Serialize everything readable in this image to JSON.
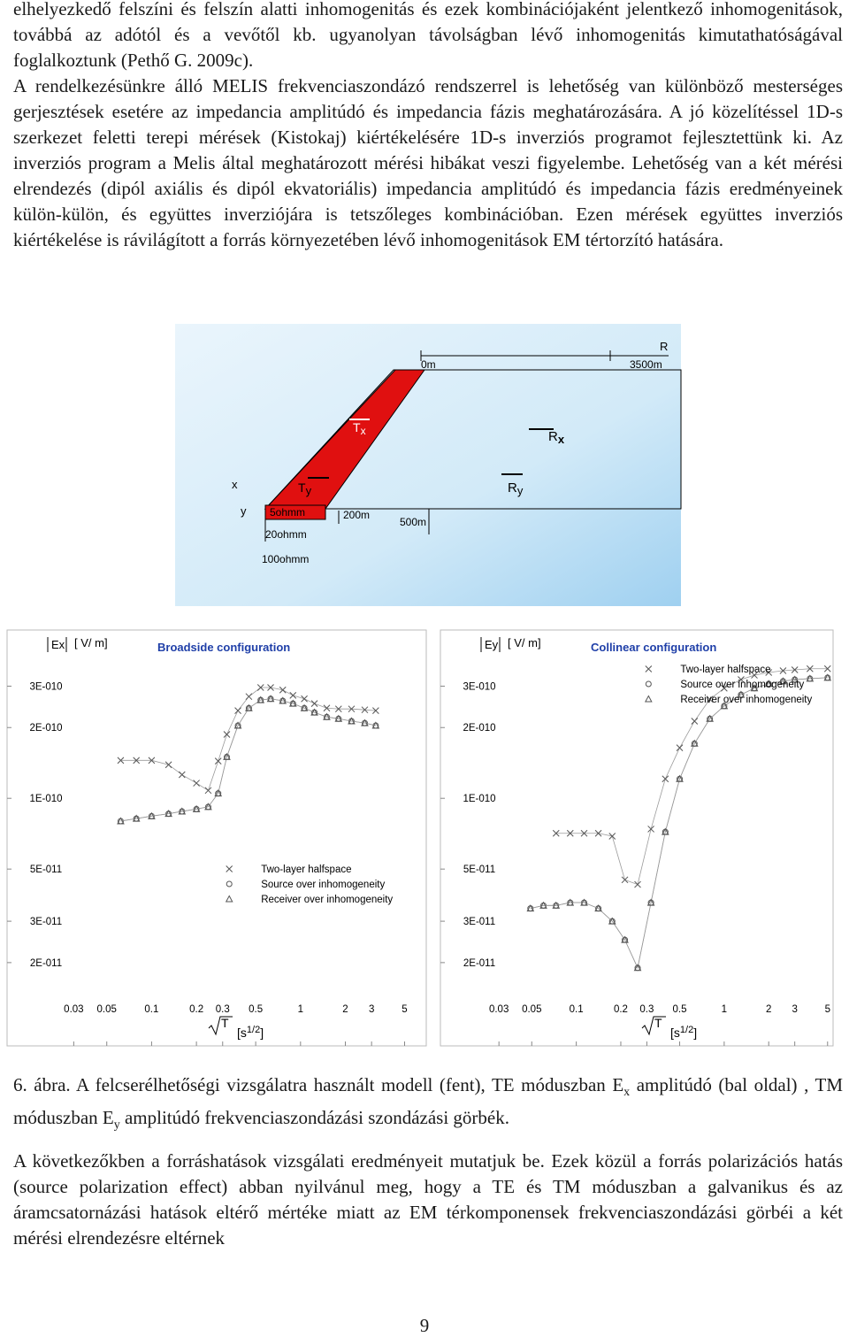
{
  "paragraphs": [
    "elhelyezkedő felszíni és felszín alatti inhomogenitás és ezek kombinációjaként jelentkező inhomogenitások, továbbá az adótól és a vevőtől kb. ugyanolyan távolságban lévő inhomogenitás kimutathatóságával foglalkoztunk (Pethő G. 2009c).",
    "A rendelkezésünkre álló MELIS frekvenciaszondázó rendszerrel is lehetőség van különböző mesterséges gerjesztések esetére az impedancia amplitúdó és impedancia fázis meghatározására. A jó közelítéssel 1D-s szerkezet feletti terepi mérések (Kistokaj) kiértékelésére 1D-s inverziós programot fejlesztettünk ki. Az inverziós program a Melis által meghatározott mérési hibákat veszi figyelembe. Lehetőség van a két mérési elrendezés (dipól axiális és dipól ekvatoriális) impedancia amplitúdó és impedancia fázis eredményeinek külön-külön, és együttes inverziójára is tetszőleges kombinációban. Ezen mérések együttes inverziós kiértékelése is rávilágított a forrás környezetében lévő inhomogenitások EM tértorzító hatására."
  ],
  "diagram": {
    "scale_start": "0m",
    "scale_end": "3500m",
    "scale_label": "R",
    "tx": {
      "main": "T",
      "sub": "x"
    },
    "rx": {
      "main": "R",
      "sub": "x"
    },
    "ty": {
      "main": "T",
      "sub": "y"
    },
    "ry": {
      "main": "R",
      "sub": "y"
    },
    "axis_x": "x",
    "axis_y": "y",
    "res_top": "5ohmm",
    "res_mid": "20ohmm",
    "res_bottom": "100ohmm",
    "width_strip": "200m",
    "depth": "500m"
  },
  "chart_data": [
    {
      "type": "line",
      "title": "Broadside configuration",
      "y_label": "Ex",
      "y_unit": "[ V/ m]",
      "x_label": "T",
      "x_unit": [
        "[s",
        "1/2",
        "]"
      ],
      "xscale": "log",
      "yscale": "log",
      "legend": "lower right",
      "xlim": [
        0.011,
        6.8
      ],
      "ylim": [
        9e-12,
        5.2e-10
      ],
      "xticks": [
        0.03,
        0.05,
        0.1,
        0.2,
        0.3,
        0.5,
        1,
        2,
        3,
        5
      ],
      "yticks": [
        {
          "value": 2e-11,
          "label": "2E-011"
        },
        {
          "value": 3e-11,
          "label": "3E-011"
        },
        {
          "value": 5e-11,
          "label": "5E-011"
        },
        {
          "value": 1e-10,
          "label": "1E-010"
        },
        {
          "value": 2e-10,
          "label": "2E-010"
        },
        {
          "value": 3e-10,
          "label": "3E-010"
        }
      ],
      "x": [
        0.062,
        0.079,
        0.1,
        0.13,
        0.16,
        0.2,
        0.24,
        0.28,
        0.32,
        0.38,
        0.45,
        0.54,
        0.63,
        0.76,
        0.89,
        1.06,
        1.24,
        1.5,
        1.8,
        2.2,
        2.7,
        3.2
      ],
      "series": [
        {
          "name": "Two-layer halfspace",
          "marker": "x",
          "color": "#555555",
          "values": [
            1.45e-10,
            1.45e-10,
            1.45e-10,
            1.39e-10,
            1.26e-10,
            1.16e-10,
            1.08e-10,
            1.44e-10,
            1.87e-10,
            2.36e-10,
            2.71e-10,
            2.96e-10,
            2.96e-10,
            2.89e-10,
            2.74e-10,
            2.65e-10,
            2.53e-10,
            2.42e-10,
            2.4e-10,
            2.4e-10,
            2.38e-10,
            2.36e-10
          ]
        },
        {
          "name": "Source over inhomogeneity",
          "marker": "circle",
          "color": "#555555",
          "values": [
            8e-11,
            8.2e-11,
            8.4e-11,
            8.6e-11,
            8.8e-11,
            9e-11,
            9.2e-11,
            1.05e-10,
            1.5e-10,
            2.04e-10,
            2.42e-10,
            2.62e-10,
            2.65e-10,
            2.6e-10,
            2.53e-10,
            2.42e-10,
            2.32e-10,
            2.22e-10,
            2.18e-10,
            2.13e-10,
            2.09e-10,
            2.04e-10
          ]
        },
        {
          "name": "Receiver over inhomogeneity",
          "marker": "triangle",
          "color": "#555555",
          "values": [
            8e-11,
            8.2e-11,
            8.4e-11,
            8.6e-11,
            8.8e-11,
            9e-11,
            9.2e-11,
            1.05e-10,
            1.5e-10,
            2.04e-10,
            2.42e-10,
            2.62e-10,
            2.65e-10,
            2.6e-10,
            2.53e-10,
            2.42e-10,
            2.32e-10,
            2.22e-10,
            2.18e-10,
            2.13e-10,
            2.09e-10,
            2.04e-10
          ]
        }
      ]
    },
    {
      "type": "line",
      "title": "Collinear configuration",
      "y_label": "Ey",
      "y_unit": "[ V/ m]",
      "x_label": "T",
      "x_unit": [
        "[s",
        "1/2",
        "]"
      ],
      "xscale": "log",
      "yscale": "log",
      "legend": "upper right",
      "xlim": [
        0.0124,
        5.3
      ],
      "ylim": [
        9e-12,
        5.2e-10
      ],
      "xticks": [
        0.03,
        0.05,
        0.1,
        0.2,
        0.3,
        0.5,
        1,
        2,
        3,
        5
      ],
      "yticks": [
        {
          "value": 2e-11,
          "label": "2E-011"
        },
        {
          "value": 3e-11,
          "label": "3E-011"
        },
        {
          "value": 5e-11,
          "label": "5E-011"
        },
        {
          "value": 1e-10,
          "label": "1E-010"
        },
        {
          "value": 2e-10,
          "label": "2E-010"
        },
        {
          "value": 3e-10,
          "label": "3E-010"
        }
      ],
      "x": [
        0.049,
        0.06,
        0.073,
        0.091,
        0.113,
        0.141,
        0.175,
        0.213,
        0.26,
        0.32,
        0.4,
        0.5,
        0.63,
        0.8,
        1.0,
        1.3,
        1.6,
        2.0,
        2.5,
        3.0,
        3.8,
        5.0
      ],
      "series": [
        {
          "name": "Two-layer halfspace",
          "marker": "x",
          "color": "#555555",
          "values": [
            null,
            null,
            7.1e-11,
            7.1e-11,
            7.1e-11,
            7.1e-11,
            6.9e-11,
            4.5e-11,
            4.3e-11,
            7.4e-11,
            1.21e-10,
            1.64e-10,
            2.13e-10,
            2.64e-10,
            2.94e-10,
            3.2e-10,
            3.34e-10,
            3.43e-10,
            3.49e-10,
            3.52e-10,
            3.56e-10,
            3.56e-10
          ]
        },
        {
          "name": "Source over inhomogeneity",
          "marker": "circle",
          "color": "#555555",
          "values": [
            3.4e-11,
            3.5e-11,
            3.5e-11,
            3.6e-11,
            3.6e-11,
            3.4e-11,
            3e-11,
            2.5e-11,
            1.9e-11,
            3.6e-11,
            7.2e-11,
            1.21e-10,
            1.71e-10,
            2.18e-10,
            2.47e-10,
            2.76e-10,
            2.94e-10,
            3.07e-10,
            3.15e-10,
            3.2e-10,
            3.23e-10,
            3.26e-10
          ]
        },
        {
          "name": "Receiver over inhomogeneity",
          "marker": "triangle",
          "color": "#555555",
          "values": [
            3.4e-11,
            3.5e-11,
            3.5e-11,
            3.6e-11,
            3.6e-11,
            3.4e-11,
            3e-11,
            2.5e-11,
            1.9e-11,
            3.6e-11,
            7.2e-11,
            1.21e-10,
            1.71e-10,
            2.18e-10,
            2.47e-10,
            2.76e-10,
            2.94e-10,
            3.07e-10,
            3.15e-10,
            3.2e-10,
            3.23e-10,
            3.26e-10
          ]
        }
      ]
    }
  ],
  "caption": [
    "6. ábra. A felcserélhetőségi vizsgálatra használt modell (fent), TE móduszban E",
    "x",
    " amplitúdó (bal oldal) , TM móduszban E",
    "y",
    " amplitúdó frekvenciaszondázási szondázási görbék."
  ],
  "closing": "A következőkben a forráshatások vizsgálati eredményeit mutatjuk be. Ezek közül a forrás polarizációs hatás (source polarization effect) abban nyilvánul meg, hogy a TE és TM móduszban a galvanikus és az áramcsatornázási hatások eltérő mértéke miatt az EM térkomponensek frekvenciaszondázási görbéi a két mérési elrendezésre eltérnek",
  "page_number": "9"
}
